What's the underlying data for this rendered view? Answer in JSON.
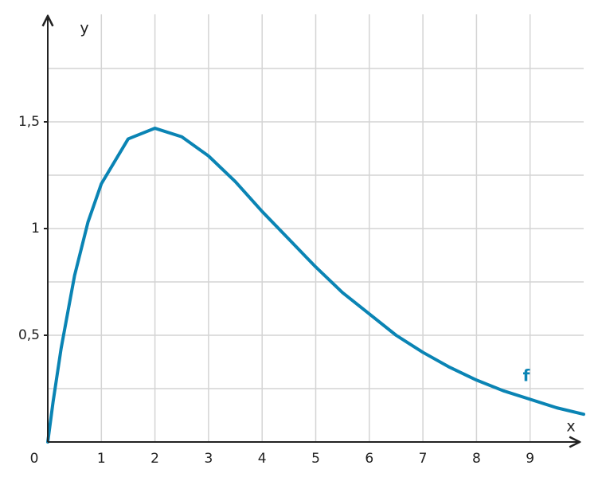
{
  "chart_data": {
    "type": "line",
    "x_label": "x",
    "y_label": "y",
    "x": [
      0,
      0.1,
      0.25,
      0.5,
      0.75,
      1,
      1.5,
      2,
      2.5,
      3,
      3.5,
      4,
      4.5,
      5,
      5.5,
      6,
      6.5,
      7,
      7.5,
      8,
      8.5,
      9,
      9.5,
      10
    ],
    "series": [
      {
        "name": "f",
        "color": "#0a84b4",
        "values": [
          0,
          0.19,
          0.44,
          0.78,
          1.03,
          1.21,
          1.42,
          1.47,
          1.43,
          1.34,
          1.22,
          1.08,
          0.95,
          0.82,
          0.7,
          0.6,
          0.5,
          0.42,
          0.35,
          0.29,
          0.24,
          0.2,
          0.16,
          0.13
        ]
      }
    ],
    "xlim": [
      0,
      10
    ],
    "ylim": [
      0,
      2
    ],
    "xticks": [
      0,
      1,
      2,
      3,
      4,
      5,
      6,
      7,
      8,
      9
    ],
    "yticks": [
      {
        "value": 0.5,
        "label": "0,5"
      },
      1,
      {
        "value": 1.5,
        "label": "1,5"
      }
    ],
    "yminor": [
      0.25,
      0.75,
      1.25,
      1.75
    ],
    "grid": true
  }
}
